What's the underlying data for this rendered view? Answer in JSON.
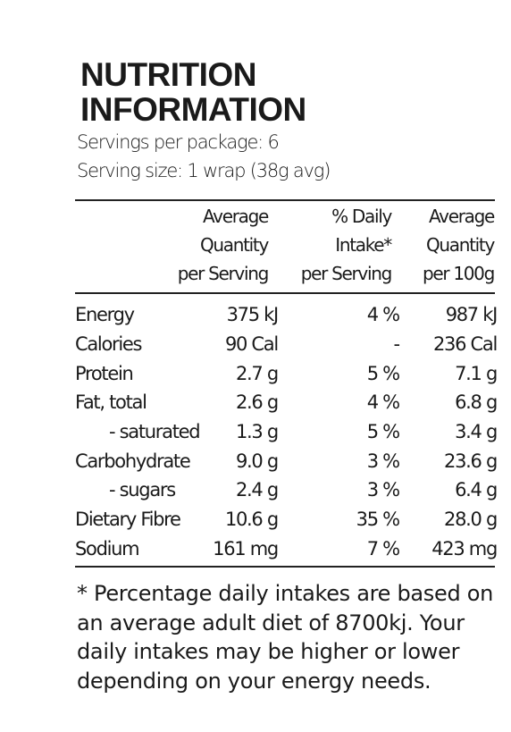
{
  "title_line1": "NUTRITION",
  "title_line2": "INFORMATION",
  "servings_per_package": "Servings per package: 6",
  "serving_size": "Serving size: 1 wrap (38g avg)",
  "headers": {
    "avg_serving": "Average\nQuantity\nper Serving",
    "daily_intake": "% Daily\nIntake*\nper Serving",
    "avg_100g": "Average\nQuantity\nper 100g"
  },
  "rows": [
    {
      "name": "Energy",
      "serving": "375 kJ",
      "di": "4 %",
      "per100": "987 kJ",
      "indent": false
    },
    {
      "name": "Calories",
      "serving": "90 Cal",
      "di": "-",
      "per100": "236 Cal",
      "indent": false
    },
    {
      "name": "Protein",
      "serving": "2.7 g",
      "di": "5 %",
      "per100": "7.1 g",
      "indent": false
    },
    {
      "name": "Fat, total",
      "serving": "2.6 g",
      "di": "4 %",
      "per100": "6.8 g",
      "indent": false
    },
    {
      "name": "- saturated",
      "serving": "1.3 g",
      "di": "5 %",
      "per100": "3.4 g",
      "indent": true
    },
    {
      "name": "Carbohydrate",
      "serving": "9.0 g",
      "di": "3 %",
      "per100": "23.6 g",
      "indent": false
    },
    {
      "name": "- sugars",
      "serving": "2.4 g",
      "di": "3 %",
      "per100": "6.4 g",
      "indent": true
    },
    {
      "name": "Dietary Fibre",
      "serving": "10.6 g",
      "di": "35 %",
      "per100": "28.0 g",
      "indent": false
    },
    {
      "name": "Sodium",
      "serving": "161 mg",
      "di": "7 %",
      "per100": "423 mg",
      "indent": false
    }
  ],
  "footnote": "* Percentage daily intakes are based on an average adult diet of 8700kj. Your daily intakes may be higher or lower depending on your energy needs."
}
